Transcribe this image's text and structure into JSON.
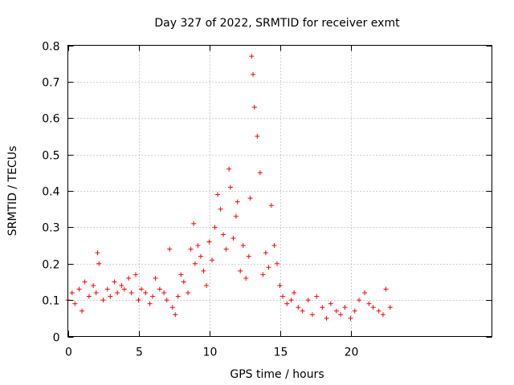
{
  "chart_data": {
    "type": "scatter",
    "title": "Day 327 of 2022, SRMTID for receiver exmt",
    "xlabel": "GPS time / hours",
    "ylabel": "SRMTID / TECUs",
    "xlim": [
      0,
      30
    ],
    "ylim": [
      0,
      0.8
    ],
    "xticks": [
      0,
      5,
      10,
      15,
      20
    ],
    "xtick_labels": [
      "0",
      "5",
      "10",
      "15",
      "20"
    ],
    "yticks": [
      0,
      0.1,
      0.2,
      0.3,
      0.4,
      0.5,
      0.6,
      0.7,
      0.8
    ],
    "ytick_labels": [
      "0",
      "0.1",
      "0.2",
      "0.3",
      "0.4",
      "0.5",
      "0.6",
      "0.7",
      "0.8"
    ],
    "grid": true,
    "marker": "+",
    "color": "#ff0000",
    "series": [
      {
        "name": "SRMTID",
        "x": [
          0.0,
          0.3,
          0.5,
          0.8,
          1.0,
          1.2,
          1.5,
          1.8,
          2.0,
          2.1,
          2.2,
          2.5,
          2.8,
          3.0,
          3.3,
          3.5,
          3.8,
          4.0,
          4.3,
          4.5,
          4.8,
          5.0,
          5.2,
          5.5,
          5.8,
          6.0,
          6.2,
          6.5,
          6.8,
          7.0,
          7.2,
          7.4,
          7.6,
          7.8,
          8.0,
          8.2,
          8.5,
          8.7,
          8.9,
          9.0,
          9.2,
          9.4,
          9.6,
          9.8,
          10.0,
          10.2,
          10.4,
          10.6,
          10.8,
          11.0,
          11.2,
          11.4,
          11.5,
          11.7,
          11.9,
          12.0,
          12.2,
          12.4,
          12.6,
          12.8,
          12.9,
          13.0,
          13.1,
          13.2,
          13.4,
          13.6,
          13.8,
          14.0,
          14.2,
          14.4,
          14.6,
          14.8,
          15.0,
          15.2,
          15.5,
          15.8,
          16.0,
          16.3,
          16.6,
          17.0,
          17.3,
          17.6,
          18.0,
          18.3,
          18.6,
          19.0,
          19.3,
          19.6,
          20.0,
          20.3,
          20.6,
          21.0,
          21.3,
          21.6,
          22.0,
          22.3,
          22.5,
          22.8
        ],
        "y": [
          0.1,
          0.12,
          0.09,
          0.13,
          0.07,
          0.15,
          0.11,
          0.14,
          0.12,
          0.23,
          0.2,
          0.1,
          0.13,
          0.11,
          0.15,
          0.12,
          0.14,
          0.13,
          0.16,
          0.12,
          0.17,
          0.1,
          0.13,
          0.12,
          0.09,
          0.11,
          0.16,
          0.13,
          0.12,
          0.1,
          0.24,
          0.08,
          0.06,
          0.11,
          0.17,
          0.15,
          0.12,
          0.24,
          0.31,
          0.2,
          0.25,
          0.22,
          0.18,
          0.14,
          0.26,
          0.21,
          0.3,
          0.39,
          0.35,
          0.28,
          0.24,
          0.46,
          0.41,
          0.27,
          0.33,
          0.37,
          0.18,
          0.25,
          0.16,
          0.22,
          0.38,
          0.77,
          0.72,
          0.63,
          0.55,
          0.45,
          0.17,
          0.23,
          0.19,
          0.36,
          0.25,
          0.2,
          0.14,
          0.11,
          0.09,
          0.1,
          0.12,
          0.08,
          0.07,
          0.1,
          0.06,
          0.11,
          0.08,
          0.05,
          0.09,
          0.07,
          0.06,
          0.08,
          0.05,
          0.07,
          0.1,
          0.12,
          0.09,
          0.08,
          0.07,
          0.06,
          0.13,
          0.08
        ]
      }
    ]
  }
}
